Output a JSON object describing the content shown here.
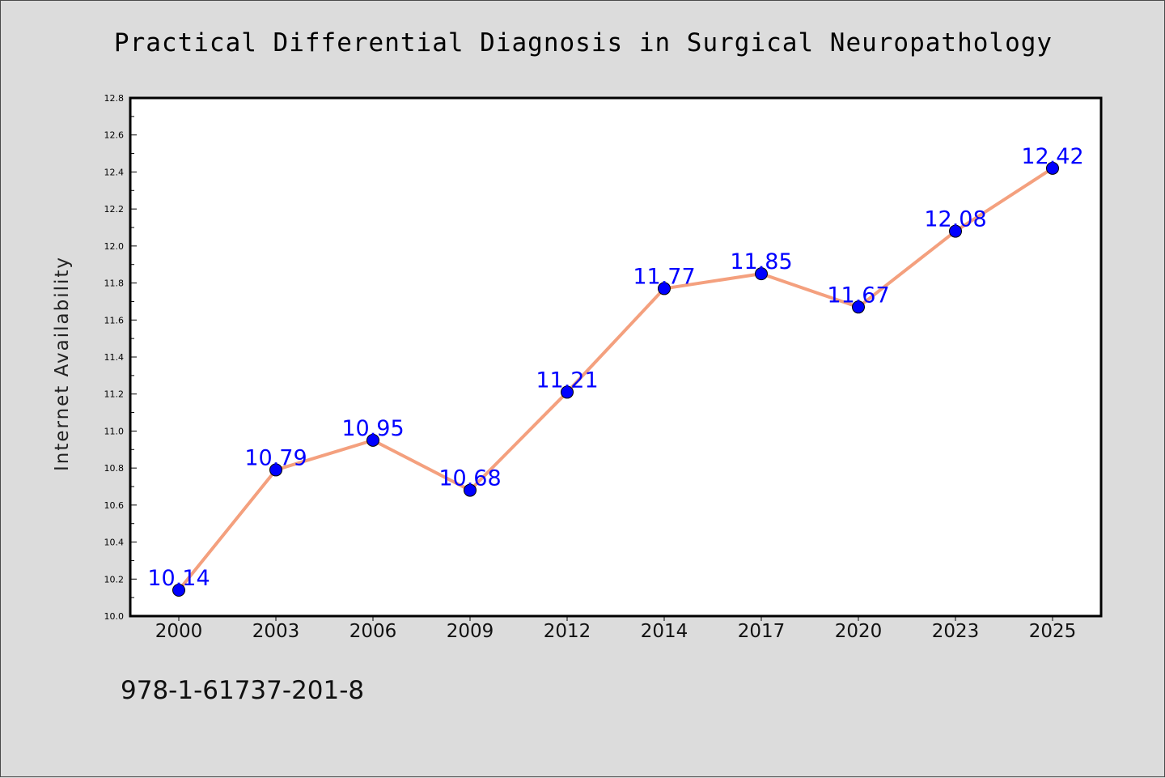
{
  "colors": {
    "background": "#dcdcdc",
    "plot_background": "#ffffff",
    "line": "#f4a07e",
    "marker": "#0000ff",
    "data_label": "#0000ff"
  },
  "footer": {
    "isbn": "978-1-61737-201-8"
  },
  "chart_data": {
    "type": "line",
    "title": "Practical Differential Diagnosis in Surgical Neuropathology",
    "xlabel": "",
    "ylabel": "Internet Availability",
    "categories": [
      "2000",
      "2003",
      "2006",
      "2009",
      "2012",
      "2014",
      "2017",
      "2020",
      "2023",
      "2025"
    ],
    "series": [
      {
        "values": [
          10.14,
          10.79,
          10.95,
          10.68,
          11.21,
          11.77,
          11.85,
          11.67,
          12.08,
          12.42
        ]
      }
    ],
    "ylim": [
      10.0,
      12.8
    ],
    "yticks": [
      "10.0",
      "10.2",
      "10.4",
      "10.6",
      "10.8",
      "11.0",
      "11.2",
      "11.4",
      "11.6",
      "11.8",
      "12.0",
      "12.2",
      "12.4",
      "12.6",
      "12.8"
    ],
    "grid": false,
    "legend": "none",
    "data_labels": true
  }
}
